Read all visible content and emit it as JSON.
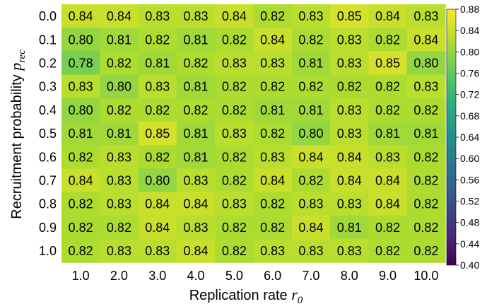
{
  "chart_data": {
    "type": "heatmap",
    "x_categories": [
      "1.0",
      "2.0",
      "3.0",
      "4.0",
      "5.0",
      "6.0",
      "7.0",
      "8.0",
      "9.0",
      "10.0"
    ],
    "y_categories": [
      "0.0",
      "0.1",
      "0.2",
      "0.3",
      "0.4",
      "0.5",
      "0.6",
      "0.7",
      "0.8",
      "0.9",
      "1.0"
    ],
    "values": [
      [
        0.84,
        0.84,
        0.83,
        0.83,
        0.84,
        0.82,
        0.83,
        0.85,
        0.84,
        0.83
      ],
      [
        0.8,
        0.81,
        0.82,
        0.81,
        0.82,
        0.84,
        0.82,
        0.83,
        0.82,
        0.84
      ],
      [
        0.78,
        0.82,
        0.81,
        0.82,
        0.83,
        0.83,
        0.81,
        0.83,
        0.85,
        0.8
      ],
      [
        0.83,
        0.8,
        0.83,
        0.81,
        0.82,
        0.82,
        0.82,
        0.82,
        0.82,
        0.83
      ],
      [
        0.8,
        0.82,
        0.82,
        0.82,
        0.82,
        0.81,
        0.81,
        0.83,
        0.82,
        0.82
      ],
      [
        0.81,
        0.81,
        0.85,
        0.81,
        0.83,
        0.82,
        0.8,
        0.83,
        0.81,
        0.81
      ],
      [
        0.82,
        0.83,
        0.82,
        0.81,
        0.82,
        0.83,
        0.84,
        0.84,
        0.83,
        0.82
      ],
      [
        0.84,
        0.83,
        0.8,
        0.83,
        0.82,
        0.84,
        0.82,
        0.84,
        0.84,
        0.82
      ],
      [
        0.82,
        0.83,
        0.84,
        0.84,
        0.83,
        0.82,
        0.83,
        0.83,
        0.84,
        0.82
      ],
      [
        0.82,
        0.82,
        0.84,
        0.83,
        0.82,
        0.82,
        0.84,
        0.81,
        0.82,
        0.82
      ],
      [
        0.82,
        0.83,
        0.83,
        0.84,
        0.82,
        0.83,
        0.83,
        0.83,
        0.82,
        0.82
      ]
    ],
    "xlabel": {
      "text": "Replication rate ",
      "symbol": "r",
      "subscript": "0"
    },
    "ylabel": {
      "text": "Recruitment  probability ",
      "symbol": "p",
      "subscript": "rec"
    },
    "colorbar": {
      "colormap": "viridis",
      "range": [
        0.4,
        0.88
      ],
      "ticks": [
        "0.88",
        "0.84",
        "0.80",
        "0.76",
        "0.72",
        "0.68",
        "0.64",
        "0.60",
        "0.56",
        "0.52",
        "0.48",
        "0.44",
        "0.40"
      ]
    },
    "grid": false,
    "cell_labels": true
  }
}
